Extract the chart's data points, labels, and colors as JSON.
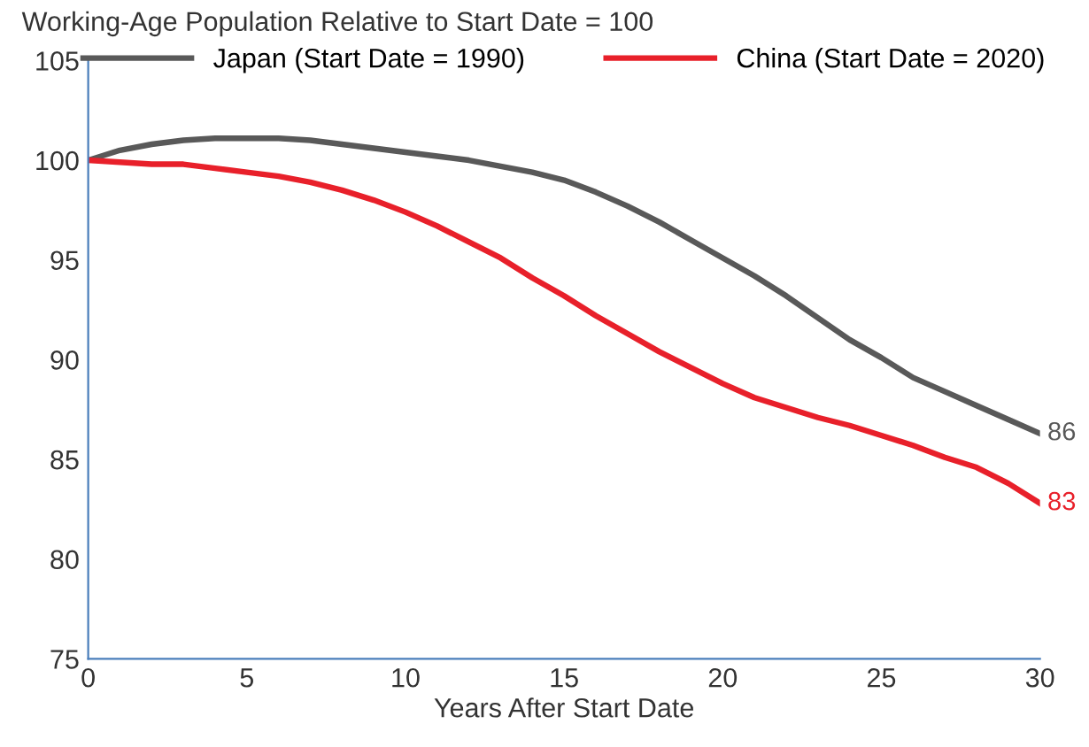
{
  "chart_data": {
    "type": "line",
    "title": "Working-Age Population Relative to Start Date = 100",
    "xlabel": "Years After Start Date",
    "x": [
      0,
      1,
      2,
      3,
      4,
      5,
      6,
      7,
      8,
      9,
      10,
      11,
      12,
      13,
      14,
      15,
      16,
      17,
      18,
      19,
      20,
      21,
      22,
      23,
      24,
      25,
      26,
      27,
      28,
      29,
      30
    ],
    "series": [
      {
        "name": "Japan (Start Date = 1990)",
        "color": "#595959",
        "values": [
          100,
          100.5,
          100.8,
          101,
          101.1,
          101.1,
          101.1,
          101,
          100.8,
          100.6,
          100.4,
          100.2,
          100,
          99.7,
          99.4,
          99,
          98.4,
          97.7,
          96.9,
          96,
          95.1,
          94.2,
          93.2,
          92.1,
          91,
          90.1,
          89.1,
          88.4,
          87.7,
          87,
          86.3
        ]
      },
      {
        "name": "China (Start Date = 2020)",
        "color": "#e8202a",
        "values": [
          100,
          99.9,
          99.8,
          99.8,
          99.6,
          99.4,
          99.2,
          98.9,
          98.5,
          98,
          97.4,
          96.7,
          95.9,
          95.1,
          94.1,
          93.2,
          92.2,
          91.3,
          90.4,
          89.6,
          88.8,
          88.1,
          87.6,
          87.1,
          86.7,
          86.2,
          85.7,
          85.1,
          84.6,
          83.8,
          82.8
        ]
      }
    ],
    "annotations": [
      {
        "text": "86",
        "x": 30,
        "y": 86.3
      },
      {
        "text": "83",
        "x": 30,
        "y": 82.8
      }
    ],
    "xlim": [
      0,
      30
    ],
    "xticks": [
      0,
      5,
      10,
      15,
      20,
      25,
      30
    ],
    "ylim": [
      75,
      105
    ],
    "yticks": [
      75,
      80,
      85,
      90,
      95,
      100,
      105
    ],
    "grid": false,
    "legend": "top",
    "marker": "none",
    "line_style": "solid"
  }
}
